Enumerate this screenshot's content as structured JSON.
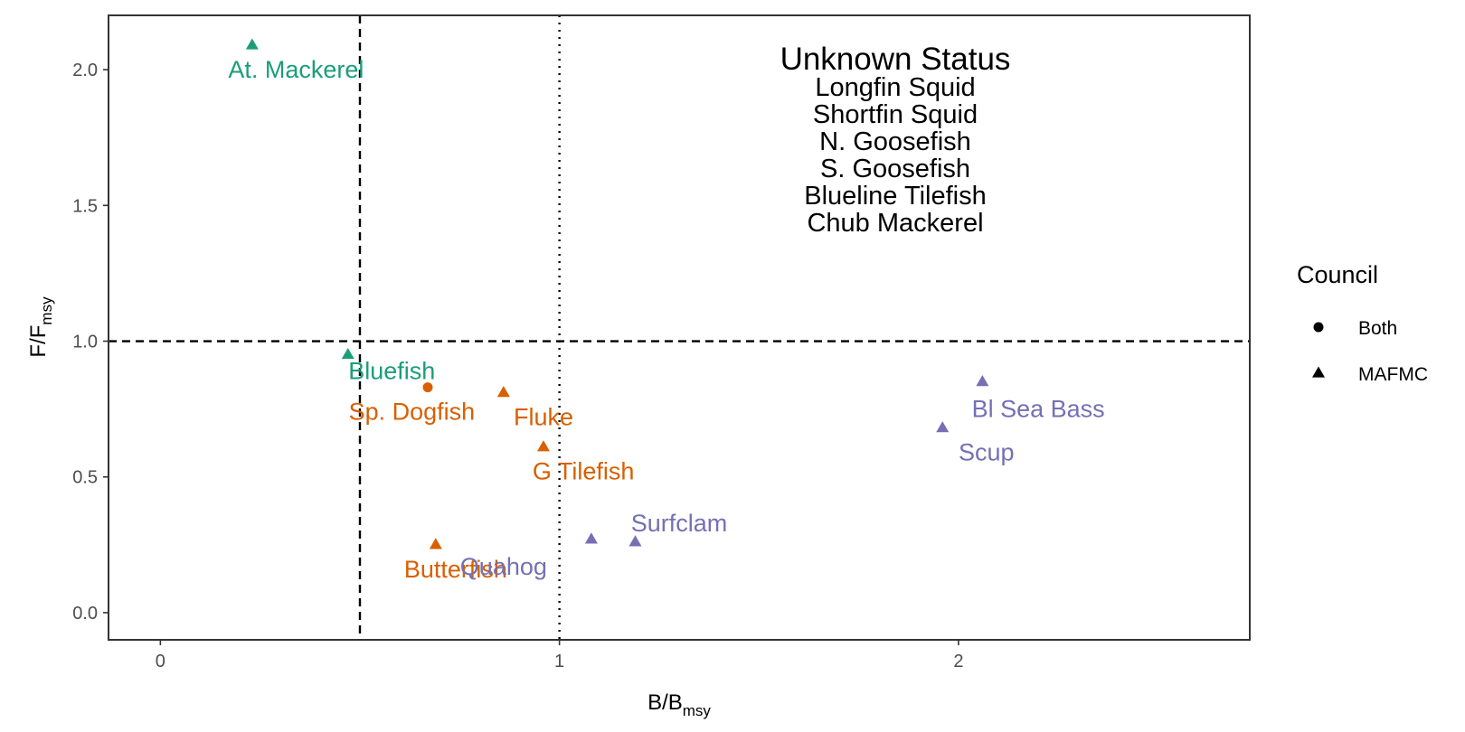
{
  "chart_data": {
    "type": "scatter",
    "xlabel": {
      "main": "B/B",
      "sub": "msy"
    },
    "ylabel": {
      "main": "F/F",
      "sub": "msy"
    },
    "xlim": [
      -0.13,
      2.73
    ],
    "ylim": [
      -0.1,
      2.2
    ],
    "x_ticks": [
      {
        "value": 0,
        "label": "0"
      },
      {
        "value": 1,
        "label": "1"
      },
      {
        "value": 2,
        "label": "2"
      }
    ],
    "y_ticks": [
      {
        "value": 0.0,
        "label": "0.0"
      },
      {
        "value": 0.5,
        "label": "0.5"
      },
      {
        "value": 1.0,
        "label": "1.0"
      },
      {
        "value": 1.5,
        "label": "1.5"
      },
      {
        "value": 2.0,
        "label": "2.0"
      }
    ],
    "reference_lines": {
      "vertical_dashed": 0.5,
      "vertical_dotted": 1.0,
      "horizontal_dashed": 1.0
    },
    "grid": false,
    "legend": {
      "title": "Council",
      "position": "right",
      "items": [
        {
          "label": "Both",
          "shape": "circle"
        },
        {
          "label": "MAFMC",
          "shape": "triangle"
        }
      ]
    },
    "colors": {
      "green": "#1b9e77",
      "orange": "#d95f02",
      "purple": "#7570b3"
    },
    "points": [
      {
        "label": "At. Mackerel",
        "x": 0.23,
        "y": 2.09,
        "shape": "triangle",
        "color": "#1b9e77",
        "label_x": 0.34,
        "label_y": 2.0
      },
      {
        "label": "Bluefish",
        "x": 0.47,
        "y": 0.95,
        "shape": "triangle",
        "color": "#1b9e77",
        "label_x": 0.58,
        "label_y": 0.89
      },
      {
        "label": "Sp. Dogfish",
        "x": 0.67,
        "y": 0.83,
        "shape": "circle",
        "color": "#d95f02",
        "label_x": 0.63,
        "label_y": 0.74
      },
      {
        "label": "Fluke",
        "x": 0.86,
        "y": 0.81,
        "shape": "triangle",
        "color": "#d95f02",
        "label_x": 0.96,
        "label_y": 0.72
      },
      {
        "label": "G Tilefish",
        "x": 0.96,
        "y": 0.61,
        "shape": "triangle",
        "color": "#d95f02",
        "label_x": 1.06,
        "label_y": 0.52
      },
      {
        "label": "Butterfish",
        "x": 0.69,
        "y": 0.25,
        "shape": "triangle",
        "color": "#d95f02",
        "label_x": 0.74,
        "label_y": 0.16
      },
      {
        "label": "Surfclam",
        "x": 1.19,
        "y": 0.26,
        "shape": "triangle",
        "color": "#7570b3",
        "label_x": 1.3,
        "label_y": 0.33
      },
      {
        "label": "Quahog",
        "x": 1.08,
        "y": 0.27,
        "shape": "triangle",
        "color": "#7570b3",
        "label_x": 0.86,
        "label_y": 0.17
      },
      {
        "label": "Bl Sea Bass",
        "x": 2.06,
        "y": 0.85,
        "shape": "triangle",
        "color": "#7570b3",
        "label_x": 2.2,
        "label_y": 0.75
      },
      {
        "label": "Scup",
        "x": 1.96,
        "y": 0.68,
        "shape": "triangle",
        "color": "#7570b3",
        "label_x": 2.07,
        "label_y": 0.59
      }
    ],
    "annotation": {
      "title": "Unknown Status",
      "items": [
        "Longfin Squid",
        "Shortfin Squid",
        "N. Goosefish",
        "S. Goosefish",
        "Blueline Tilefish",
        "Chub Mackerel"
      ]
    }
  }
}
